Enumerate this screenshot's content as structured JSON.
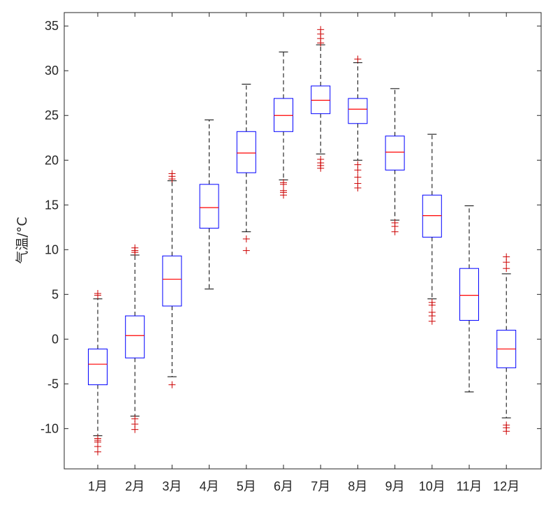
{
  "chart_data": {
    "type": "boxplot",
    "ylabel": "气温/°C",
    "ylim": [
      -14.5,
      36.5
    ],
    "yticks": [
      -10,
      -5,
      0,
      5,
      10,
      15,
      20,
      25,
      30,
      35
    ],
    "categories": [
      "1月",
      "2月",
      "3月",
      "4月",
      "5月",
      "6月",
      "7月",
      "8月",
      "9月",
      "10月",
      "11月",
      "12月"
    ],
    "colors": {
      "box": "#0000ff",
      "median": "#ff0000",
      "whisker": "#000000",
      "outlier": "#cc0000",
      "axis": "#262626"
    },
    "boxes": [
      {
        "category": "1月",
        "whisker_low": -10.8,
        "q1": -5.1,
        "median": -2.8,
        "q3": -1.1,
        "whisker_high": 4.5,
        "outliers": [
          4.9,
          5.1,
          -11.1,
          -11.3,
          -11.5,
          -12.0,
          -12.6
        ]
      },
      {
        "category": "2月",
        "whisker_low": -8.6,
        "q1": -2.1,
        "median": 0.4,
        "q3": 2.6,
        "whisker_high": 9.4,
        "outliers": [
          9.7,
          9.9,
          10.2,
          -8.9,
          -9.5,
          -10.1
        ]
      },
      {
        "category": "3月",
        "whisker_low": -4.2,
        "q1": 3.7,
        "median": 6.7,
        "q3": 9.3,
        "whisker_high": 17.7,
        "outliers": [
          17.9,
          18.2,
          18.5,
          -5.1
        ]
      },
      {
        "category": "4月",
        "whisker_low": 5.6,
        "q1": 12.4,
        "median": 14.7,
        "q3": 17.3,
        "whisker_high": 24.5,
        "outliers": []
      },
      {
        "category": "5月",
        "whisker_low": 12.0,
        "q1": 18.6,
        "median": 20.8,
        "q3": 23.2,
        "whisker_high": 28.5,
        "outliers": [
          11.2,
          9.9
        ]
      },
      {
        "category": "6月",
        "whisker_low": 17.8,
        "q1": 23.2,
        "median": 25.0,
        "q3": 26.9,
        "whisker_high": 32.1,
        "outliers": [
          17.5,
          17.3,
          16.6,
          16.4,
          16.1
        ]
      },
      {
        "category": "7月",
        "whisker_low": 20.7,
        "q1": 25.2,
        "median": 26.7,
        "q3": 28.3,
        "whisker_high": 32.9,
        "outliers": [
          33.1,
          33.6,
          34.1,
          34.6,
          20.1,
          19.7,
          19.4,
          19.1
        ]
      },
      {
        "category": "8月",
        "whisker_low": 20.0,
        "q1": 24.1,
        "median": 25.7,
        "q3": 26.9,
        "whisker_high": 30.9,
        "outliers": [
          31.3,
          19.5,
          18.9,
          18.1,
          17.4,
          16.9
        ]
      },
      {
        "category": "9月",
        "whisker_low": 13.3,
        "q1": 18.9,
        "median": 20.9,
        "q3": 22.7,
        "whisker_high": 28.0,
        "outliers": [
          13.0,
          12.6,
          12.0
        ]
      },
      {
        "category": "10月",
        "whisker_low": 4.5,
        "q1": 11.4,
        "median": 13.8,
        "q3": 16.1,
        "whisker_high": 22.9,
        "outliers": [
          4.1,
          3.8,
          3.0,
          2.6,
          2.0
        ]
      },
      {
        "category": "11月",
        "whisker_low": -5.9,
        "q1": 2.1,
        "median": 4.9,
        "q3": 7.9,
        "whisker_high": 14.9,
        "outliers": []
      },
      {
        "category": "12月",
        "whisker_low": -8.8,
        "q1": -3.2,
        "median": -1.1,
        "q3": 1.0,
        "whisker_high": 7.3,
        "outliers": [
          7.9,
          8.6,
          9.2,
          -9.6,
          -9.9,
          -10.3
        ]
      }
    ]
  }
}
